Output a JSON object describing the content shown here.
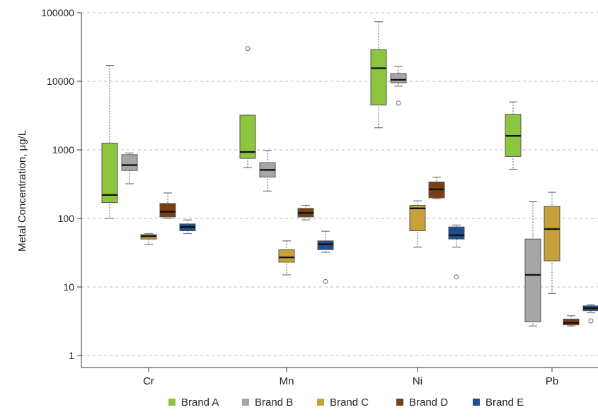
{
  "chart_data": {
    "type": "boxplot",
    "y_scale": "log10",
    "ylim": [
      1,
      100000
    ],
    "ylabel": "Metal Concentration, µg/L",
    "xlabel": "",
    "y_ticks": [
      1,
      10,
      100,
      1000,
      10000,
      100000
    ],
    "y_tick_labels": [
      "1",
      "10",
      "100",
      "1000",
      "10000",
      "100000"
    ],
    "categories": [
      "Cr",
      "Mn",
      "Ni",
      "Pb"
    ],
    "grid": "horizontal dashed",
    "legend_position": "bottom",
    "series": [
      {
        "name": "Brand A",
        "color": "#8cc63f",
        "boxes": [
          {
            "category": "Cr",
            "whisker_low": 100,
            "q1": 170,
            "median": 220,
            "q3": 1250,
            "whisker_high": 17000,
            "outliers": []
          },
          {
            "category": "Mn",
            "whisker_low": 550,
            "q1": 750,
            "median": 930,
            "q3": 3200,
            "whisker_high": 3200,
            "outliers": [
              30000
            ]
          },
          {
            "category": "Ni",
            "whisker_low": 2100,
            "q1": 4500,
            "median": 15500,
            "q3": 29000,
            "whisker_high": 74000,
            "outliers": []
          },
          {
            "category": "Pb",
            "whisker_low": 520,
            "q1": 800,
            "median": 1600,
            "q3": 3300,
            "whisker_high": 5000,
            "outliers": []
          }
        ]
      },
      {
        "name": "Brand B",
        "color": "#a6a6a6",
        "boxes": [
          {
            "category": "Cr",
            "whisker_low": 320,
            "q1": 500,
            "median": 600,
            "q3": 850,
            "whisker_high": 900,
            "outliers": []
          },
          {
            "category": "Mn",
            "whisker_low": 250,
            "q1": 400,
            "median": 510,
            "q3": 650,
            "whisker_high": 980,
            "outliers": []
          },
          {
            "category": "Ni",
            "whisker_low": 8500,
            "q1": 9500,
            "median": 10500,
            "q3": 13000,
            "whisker_high": 16500,
            "outliers": [
              4800
            ]
          },
          {
            "category": "Pb",
            "whisker_low": 2.7,
            "q1": 3.1,
            "median": 15,
            "q3": 50,
            "whisker_high": 175,
            "outliers": []
          }
        ]
      },
      {
        "name": "Brand C",
        "color": "#c9a13a",
        "boxes": [
          {
            "category": "Cr",
            "whisker_low": 42,
            "q1": 50,
            "median": 55,
            "q3": 58,
            "whisker_high": 60,
            "outliers": []
          },
          {
            "category": "Mn",
            "whisker_low": 15,
            "q1": 23,
            "median": 27,
            "q3": 35,
            "whisker_high": 47,
            "outliers": []
          },
          {
            "category": "Ni",
            "whisker_low": 38,
            "q1": 66,
            "median": 140,
            "q3": 155,
            "whisker_high": 180,
            "outliers": []
          },
          {
            "category": "Pb",
            "whisker_low": 8,
            "q1": 24,
            "median": 70,
            "q3": 150,
            "whisker_high": 240,
            "outliers": []
          }
        ]
      },
      {
        "name": "Brand D",
        "color": "#7a3e12",
        "boxes": [
          {
            "category": "Cr",
            "whisker_low": 100,
            "q1": 105,
            "median": 125,
            "q3": 165,
            "whisker_high": 235,
            "outliers": []
          },
          {
            "category": "Mn",
            "whisker_low": 95,
            "q1": 105,
            "median": 120,
            "q3": 140,
            "whisker_high": 155,
            "outliers": []
          },
          {
            "category": "Ni",
            "whisker_low": 195,
            "q1": 200,
            "median": 265,
            "q3": 340,
            "whisker_high": 400,
            "outliers": []
          },
          {
            "category": "Pb",
            "whisker_low": 2.7,
            "q1": 2.8,
            "median": 3.0,
            "q3": 3.4,
            "whisker_high": 3.8,
            "outliers": []
          }
        ]
      },
      {
        "name": "Brand E",
        "color": "#1f4e8c",
        "boxes": [
          {
            "category": "Cr",
            "whisker_low": 60,
            "q1": 66,
            "median": 75,
            "q3": 83,
            "whisker_high": 95,
            "outliers": []
          },
          {
            "category": "Mn",
            "whisker_low": 32,
            "q1": 35,
            "median": 42,
            "q3": 47,
            "whisker_high": 65,
            "outliers": [
              12
            ]
          },
          {
            "category": "Ni",
            "whisker_low": 38,
            "q1": 50,
            "median": 57,
            "q3": 75,
            "whisker_high": 80,
            "outliers": [
              14
            ]
          },
          {
            "category": "Pb",
            "whisker_low": 4.2,
            "q1": 4.5,
            "median": 4.9,
            "q3": 5.3,
            "whisker_high": 5.5,
            "outliers": [
              3.2
            ]
          }
        ]
      }
    ]
  }
}
